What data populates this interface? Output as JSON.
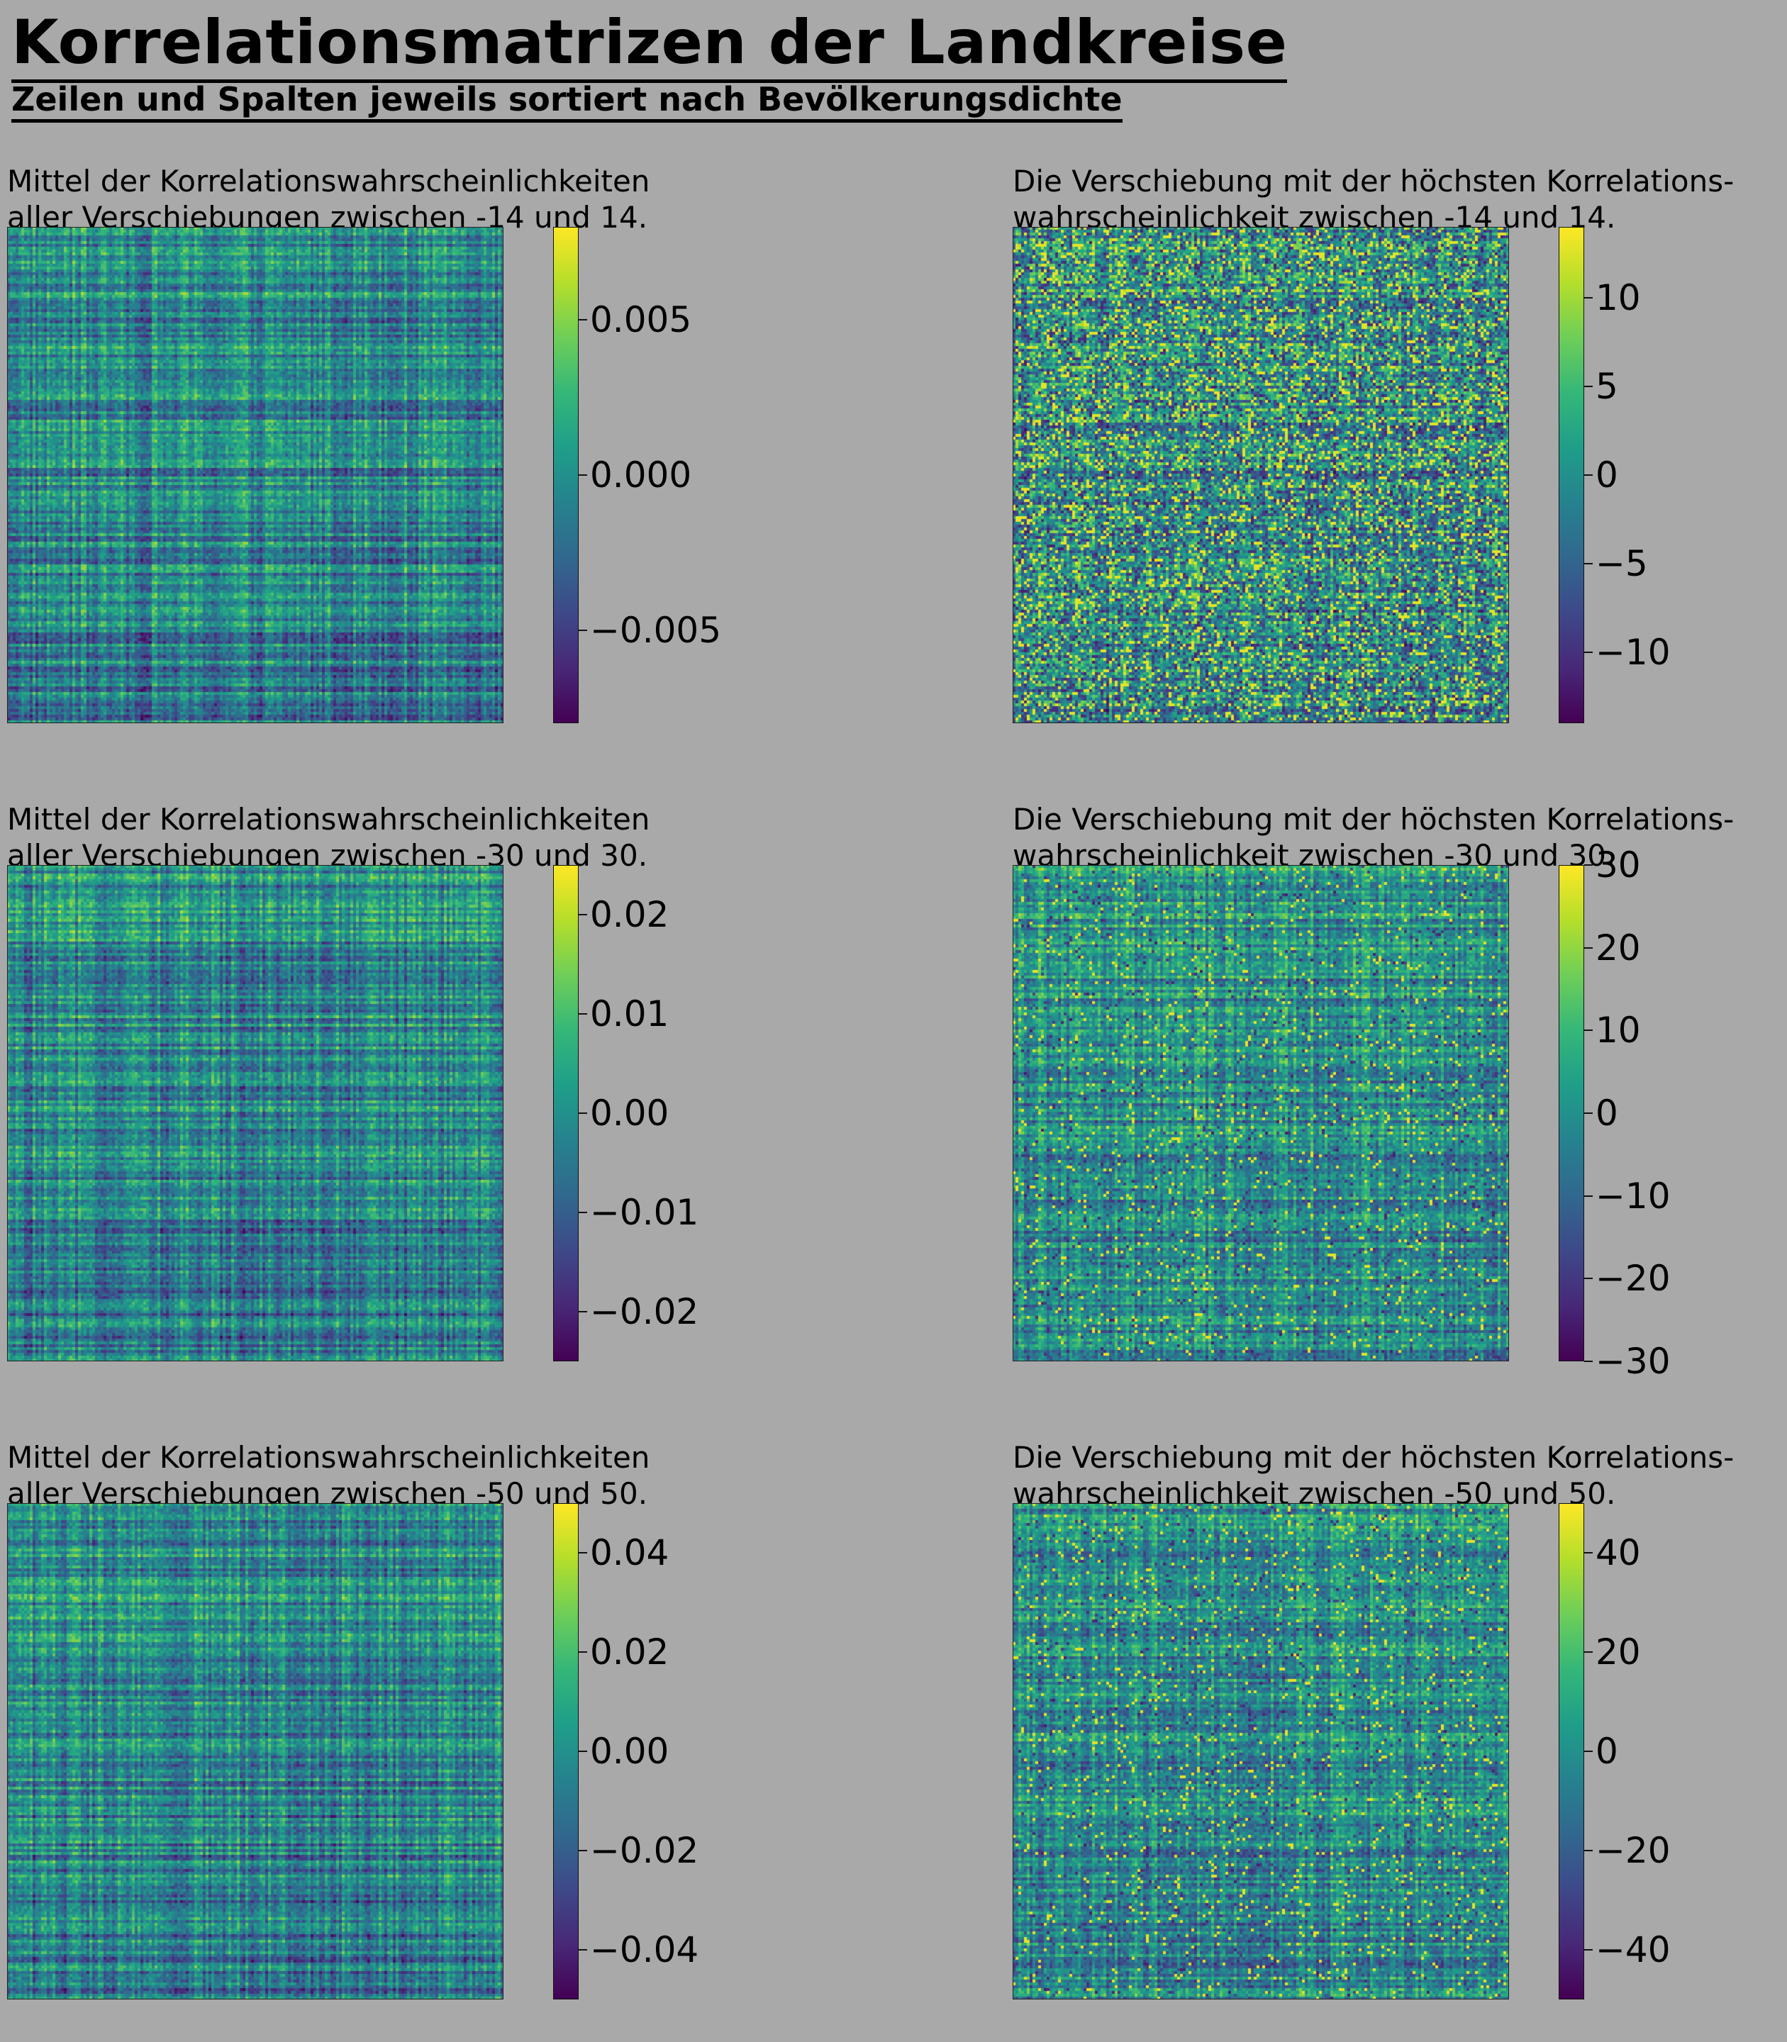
{
  "header": {
    "title": "Korrelationsmatrizen der Landkreise",
    "subtitle": "Zeilen und Spalten jeweils sortiert nach Bevölkerungsdichte"
  },
  "colors": {
    "background": "#a9a9a9",
    "colormap": "viridis"
  },
  "chart_data": [
    {
      "type": "heatmap",
      "title": "Mittel der Korrelationswahrscheinlichkeiten\naller Verschiebungen zwischen -14 und 14.",
      "colormap": "viridis",
      "vmin": -0.008,
      "vmax": 0.008,
      "colorbar_ticks": [
        0.005,
        0.0,
        -0.005
      ],
      "colorbar_tick_labels": [
        "0.005",
        "0.000",
        "−0.005"
      ],
      "axes_visible": false
    },
    {
      "type": "heatmap",
      "title": "Die Verschiebung mit der höchsten Korrelations-\nwahrscheinlichkeit zwischen -14 und 14.",
      "colormap": "viridis",
      "vmin": -14,
      "vmax": 14,
      "colorbar_ticks": [
        10,
        5,
        0,
        -5,
        -10
      ],
      "colorbar_tick_labels": [
        "10",
        "5",
        "0",
        "−5",
        "−10"
      ],
      "axes_visible": false
    },
    {
      "type": "heatmap",
      "title": "Mittel der Korrelationswahrscheinlichkeiten\naller Verschiebungen zwischen -30 und 30.",
      "colormap": "viridis",
      "vmin": -0.025,
      "vmax": 0.025,
      "colorbar_ticks": [
        0.02,
        0.01,
        0.0,
        -0.01,
        -0.02
      ],
      "colorbar_tick_labels": [
        "0.02",
        "0.01",
        "0.00",
        "−0.01",
        "−0.02"
      ],
      "axes_visible": false
    },
    {
      "type": "heatmap",
      "title": "Die Verschiebung mit der höchsten Korrelations-\nwahrscheinlichkeit zwischen -30 und 30.",
      "colormap": "viridis",
      "vmin": -30,
      "vmax": 30,
      "colorbar_ticks": [
        30,
        20,
        10,
        0,
        -10,
        -20,
        -30
      ],
      "colorbar_tick_labels": [
        "30",
        "20",
        "10",
        "0",
        "−10",
        "−20",
        "−30"
      ],
      "axes_visible": false
    },
    {
      "type": "heatmap",
      "title": "Mittel der Korrelationswahrscheinlichkeiten\naller Verschiebungen zwischen -50 und 50.",
      "colormap": "viridis",
      "vmin": -0.05,
      "vmax": 0.05,
      "colorbar_ticks": [
        0.04,
        0.02,
        0.0,
        -0.02,
        -0.04
      ],
      "colorbar_tick_labels": [
        "0.04",
        "0.02",
        "0.00",
        "−0.02",
        "−0.04"
      ],
      "axes_visible": false
    },
    {
      "type": "heatmap",
      "title": "Die Verschiebung mit der höchsten Korrelations-\nwahrscheinlichkeit zwischen -50 und 50.",
      "colormap": "viridis",
      "vmin": -50,
      "vmax": 50,
      "colorbar_ticks": [
        40,
        20,
        0,
        -20,
        -40
      ],
      "colorbar_tick_labels": [
        "40",
        "20",
        "0",
        "−20",
        "−40"
      ],
      "axes_visible": false
    }
  ]
}
